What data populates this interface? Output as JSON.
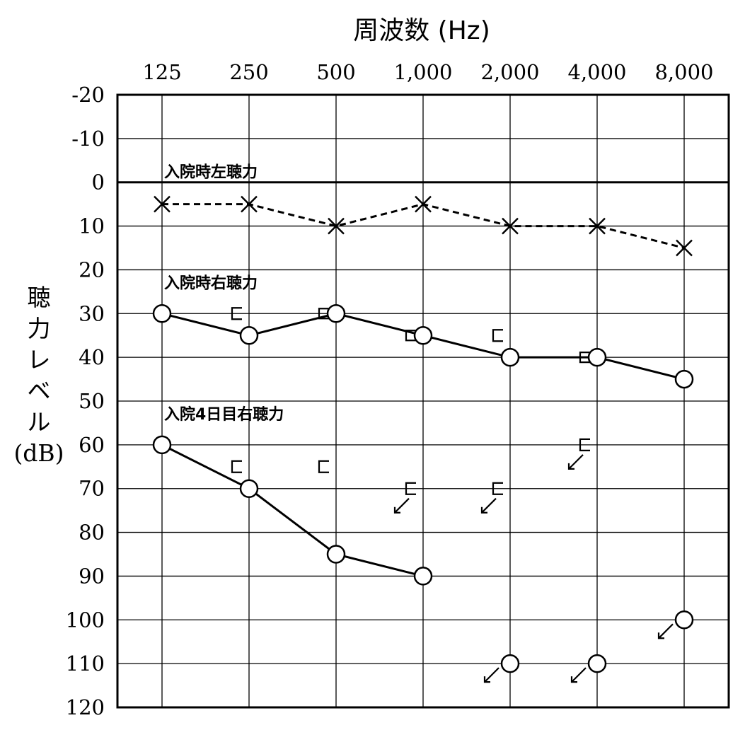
{
  "chart_data": {
    "type": "line",
    "title": "周波数 (Hz)",
    "xlabel": "周波数 (Hz)",
    "ylabel": "聴力レベル (dB)",
    "ylabel_chars": [
      "聴",
      "力",
      "レ",
      "ベ",
      "ル",
      "(dB)"
    ],
    "x_categories": [
      "125",
      "250",
      "500",
      "1,000",
      "2,000",
      "4,000",
      "8,000"
    ],
    "y_ticks": [
      "-20",
      "-10",
      "0",
      "10",
      "20",
      "30",
      "40",
      "50",
      "60",
      "70",
      "80",
      "90",
      "100",
      "110",
      "120"
    ],
    "ylim": [
      -20,
      120
    ],
    "y_inverted": true,
    "grid": true,
    "series": [
      {
        "name": "入院時左聴力",
        "marker": "x",
        "line": "dashed",
        "values": [
          5,
          5,
          10,
          5,
          10,
          10,
          15
        ]
      },
      {
        "name": "入院時右聴力",
        "marker": "circle",
        "line": "solid",
        "values": [
          30,
          35,
          30,
          35,
          40,
          40,
          45
        ]
      },
      {
        "name": "入院4日目右聴力",
        "marker": "circle",
        "line": "solid",
        "values": [
          60,
          70,
          85,
          90,
          null,
          null,
          null
        ]
      }
    ],
    "scale_out_points": [
      {
        "x_index": 4,
        "y": 110
      },
      {
        "x_index": 5,
        "y": 110
      },
      {
        "x_index": 6,
        "y": 100
      }
    ],
    "bone_conduction_right_admission": [
      {
        "x_index": 1,
        "y": 30
      },
      {
        "x_index": 2,
        "y": 30
      },
      {
        "x_index": 3,
        "y": 35
      },
      {
        "x_index": 4,
        "y": 35
      },
      {
        "x_index": 5,
        "y": 40
      }
    ],
    "bone_conduction_right_day4": [
      {
        "x_index": 1,
        "y": 65,
        "scale_out": false
      },
      {
        "x_index": 2,
        "y": 65,
        "scale_out": false
      },
      {
        "x_index": 3,
        "y": 70,
        "scale_out": true
      },
      {
        "x_index": 4,
        "y": 70,
        "scale_out": true
      },
      {
        "x_index": 5,
        "y": 60,
        "scale_out": true
      }
    ]
  }
}
